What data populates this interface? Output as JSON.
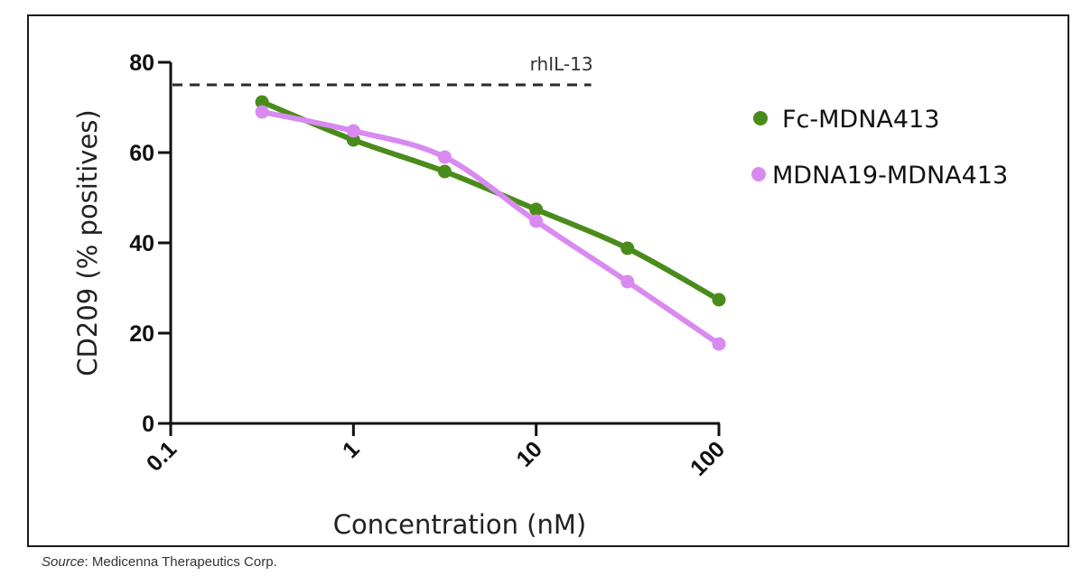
{
  "chart_data": {
    "type": "line",
    "title": "",
    "xlabel": "Concentration (nM)",
    "ylabel": "CD209 (% positives)",
    "xscale": "log",
    "xlim": [
      0.1,
      100
    ],
    "ylim": [
      0,
      80
    ],
    "xticks": [
      0.1,
      1,
      10,
      100
    ],
    "xtick_labels": [
      "0.1",
      "1",
      "10",
      "100"
    ],
    "yticks": [
      0,
      20,
      40,
      60,
      80
    ],
    "ytick_labels": [
      "0",
      "20",
      "40",
      "60",
      "80"
    ],
    "grid": false,
    "legend_position": "right",
    "x": [
      0.316,
      1,
      3.16,
      10,
      31.6,
      100
    ],
    "series": [
      {
        "name": "Fc-MDNA413",
        "color": "#4a8c1c",
        "values": [
          71.2,
          62.8,
          55.8,
          47.4,
          38.8,
          27.4
        ]
      },
      {
        "name": "MDNA19-MDNA413",
        "color": "#d98af0",
        "values": [
          69.0,
          64.8,
          59.0,
          44.8,
          31.4,
          17.6
        ]
      }
    ],
    "reference_line": {
      "label": "rhIL-13",
      "y": 75,
      "x_range": [
        0.1,
        20
      ],
      "style": "dashed",
      "color": "#2a2a2a"
    }
  },
  "source": {
    "prefix": "Source",
    "text": ": Medicenna Therapeutics Corp."
  }
}
